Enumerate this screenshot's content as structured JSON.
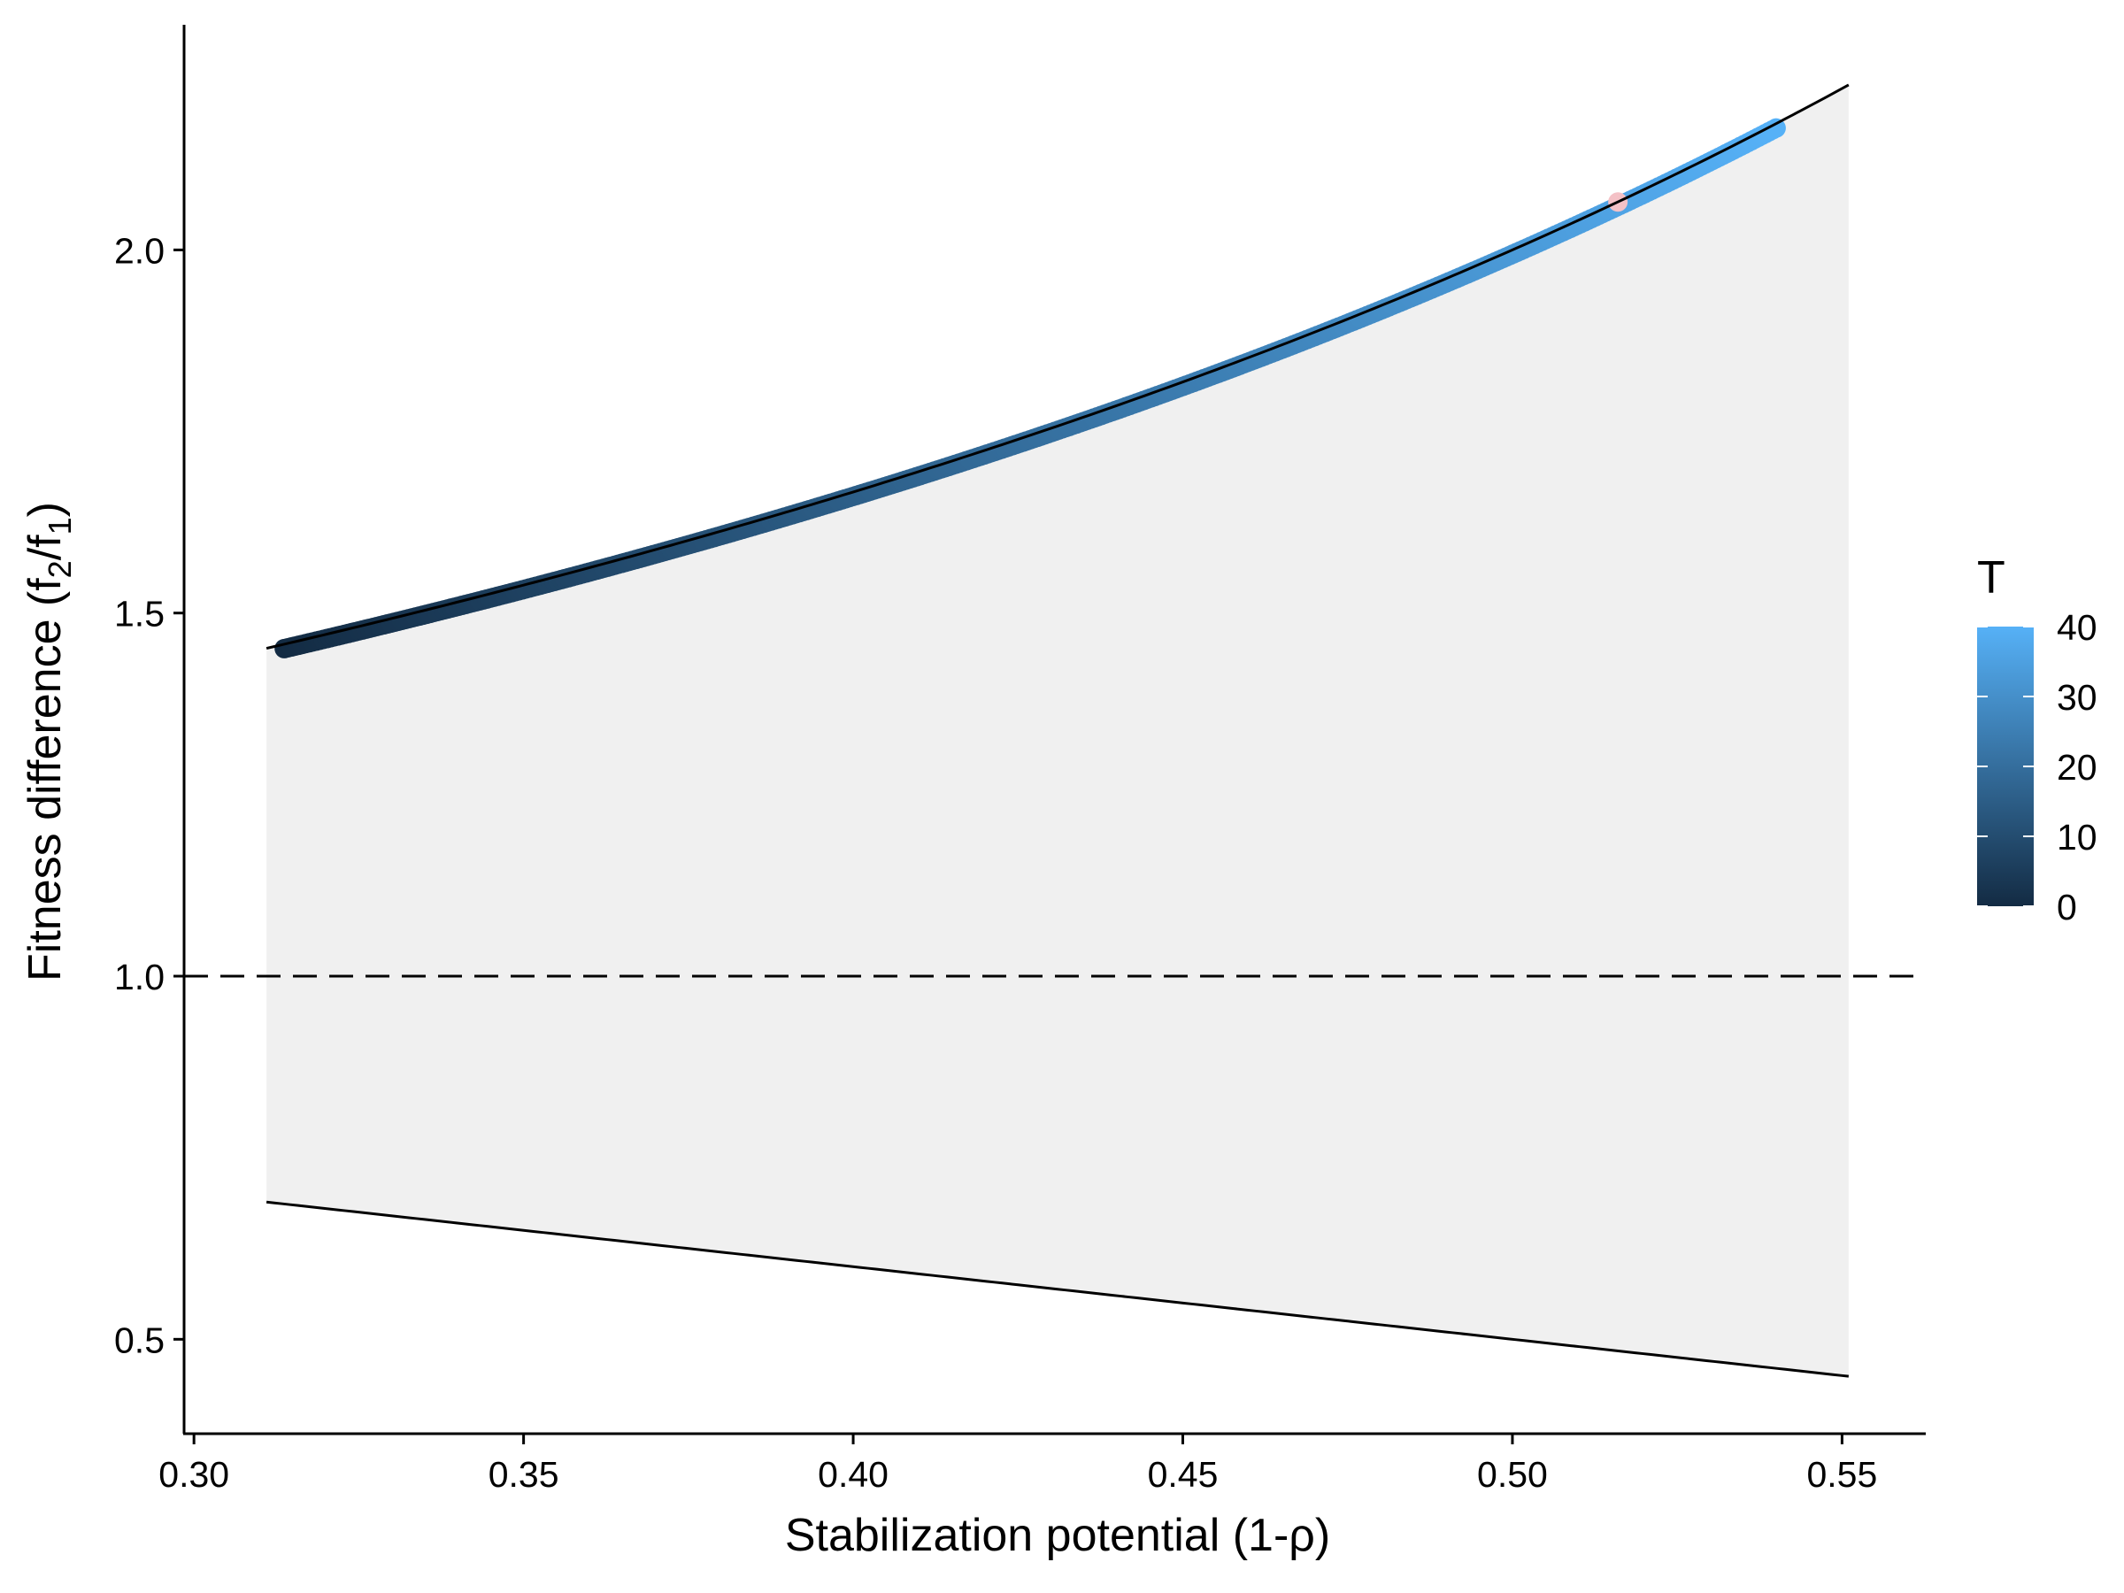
{
  "chart_data": {
    "type": "scatter",
    "title": "",
    "xlabel": "Stabilization potential (1-ρ)",
    "ylabel": {
      "prefix": "Fitness difference (f",
      "sub_numerator": "2",
      "slash": "/f",
      "sub_denominator": "1",
      "suffix": ")"
    },
    "xlim": [
      0.2985,
      0.5627
    ],
    "ylim": [
      0.37,
      2.31
    ],
    "x_ticks": [
      0.3,
      0.35,
      0.4,
      0.45,
      0.5,
      0.55
    ],
    "x_tick_labels": [
      "0.30",
      "0.35",
      "0.40",
      "0.45",
      "0.50",
      "0.55"
    ],
    "y_ticks": [
      0.5,
      1.0,
      1.5,
      2.0
    ],
    "y_tick_labels": [
      "0.5",
      "1.0",
      "1.5",
      "2.0"
    ],
    "grid": false,
    "coexistence_region": {
      "x_range": [
        0.311,
        0.551
      ],
      "upper_boundary": "1/(1 - x)",
      "lower_boundary": "1 - x",
      "fill_color": "#f0f0f0",
      "line_color": "#000000"
    },
    "reference_line": {
      "y": 1.0,
      "style": "dashed",
      "color": "#000000"
    },
    "series": [
      {
        "color_variable": "T",
        "x_range": [
          0.3137,
          0.54
        ],
        "T_range": [
          0,
          40
        ],
        "relation": "y = 1/(1 - x)",
        "color_low": "#132b43",
        "color_high": "#56b1f7"
      }
    ],
    "highlight_point": {
      "x": 0.516,
      "y": 2.066,
      "color": "#f4c1c6"
    },
    "legend": {
      "title": "T",
      "position": "right",
      "ticks": [
        0,
        10,
        20,
        30,
        40
      ],
      "tick_labels": [
        "0",
        "10",
        "20",
        "30",
        "40"
      ],
      "color_low": "#132b43",
      "color_high": "#56b1f7"
    }
  }
}
